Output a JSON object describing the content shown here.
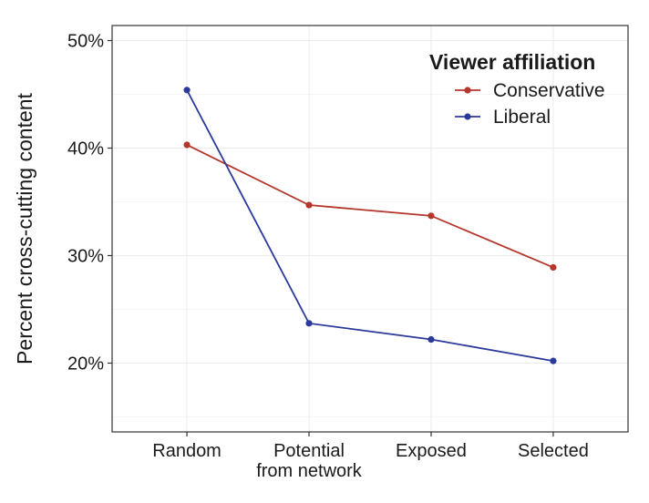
{
  "chart_data": {
    "type": "line",
    "title": "",
    "xlabel": "",
    "ylabel": "Percent cross-cutting content",
    "categories": [
      [
        "Random"
      ],
      [
        "Potential",
        "from network"
      ],
      [
        "Exposed"
      ],
      [
        "Selected"
      ]
    ],
    "series": [
      {
        "name": "Conservative",
        "color": "#b5362b",
        "values": [
          40.3,
          34.7,
          33.7,
          28.9
        ]
      },
      {
        "name": "Liberal",
        "color": "#2b3a9a",
        "values": [
          45.4,
          23.7,
          22.2,
          20.2
        ]
      }
    ],
    "ylim": [
      13.6,
      51.4
    ],
    "yticks": [
      20,
      30,
      40,
      50
    ],
    "ytick_labels": [
      "20%",
      "30%",
      "40%",
      "50%"
    ],
    "grid": true,
    "legend": {
      "title": "Viewer affiliation",
      "placement": "top-right"
    }
  }
}
